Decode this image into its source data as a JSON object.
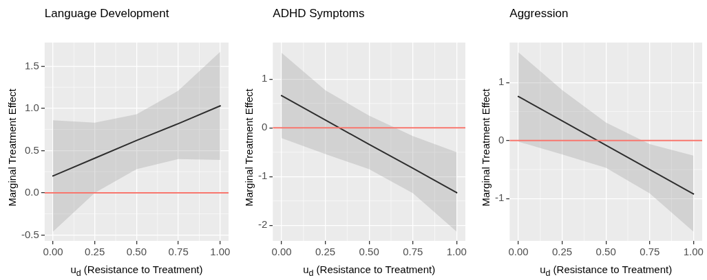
{
  "chart_data": [
    {
      "type": "line",
      "title": "Language Development",
      "xlabel": "u$_{d}$ (Resistance to Treatment)",
      "ylabel": "Marginal Treatment Effect",
      "x": [
        0,
        0.25,
        0.5,
        0.75,
        1
      ],
      "xlim": [
        -0.05,
        1.05
      ],
      "xticks": [
        {
          "value": 0,
          "label": "0.00"
        },
        {
          "value": 0.25,
          "label": "0.25"
        },
        {
          "value": 0.5,
          "label": "0.50"
        },
        {
          "value": 0.75,
          "label": "0.75"
        },
        {
          "value": 1,
          "label": "1.00"
        }
      ],
      "ylim": [
        -0.57,
        1.78
      ],
      "yticks": [
        {
          "value": -0.5,
          "label": "-0.5"
        },
        {
          "value": 0,
          "label": "0.0"
        },
        {
          "value": 0.5,
          "label": "0.5"
        },
        {
          "value": 1,
          "label": "1.0"
        },
        {
          "value": 1.5,
          "label": "1.5"
        }
      ],
      "grid": true,
      "legend": false,
      "series": [
        {
          "color": "#000000",
          "values": [
            0.2,
            0.41,
            0.62,
            0.82,
            1.03
          ],
          "lower": [
            -0.46,
            0.0,
            0.28,
            0.4,
            0.39
          ],
          "upper": [
            0.86,
            0.83,
            0.93,
            1.21,
            1.67
          ]
        }
      ],
      "ref_lines": [
        {
          "axis": "y",
          "value": 0,
          "color": "#f8766d"
        }
      ]
    },
    {
      "type": "line",
      "title": "ADHD Symptoms",
      "xlabel": "u$_{d}$ (Resistance to Treatment)",
      "ylabel": "Marginal Treatment Effect",
      "x": [
        0,
        0.25,
        0.5,
        0.75,
        1
      ],
      "xlim": [
        -0.05,
        1.05
      ],
      "xticks": [
        {
          "value": 0,
          "label": "0.00"
        },
        {
          "value": 0.25,
          "label": "0.25"
        },
        {
          "value": 0.5,
          "label": "0.50"
        },
        {
          "value": 0.75,
          "label": "0.75"
        },
        {
          "value": 1,
          "label": "1.00"
        }
      ],
      "ylim": [
        -2.32,
        1.75
      ],
      "yticks": [
        {
          "value": -2,
          "label": "-2"
        },
        {
          "value": -1,
          "label": "-1"
        },
        {
          "value": 0,
          "label": "0"
        },
        {
          "value": 1,
          "label": "1"
        }
      ],
      "grid": true,
      "legend": false,
      "series": [
        {
          "color": "#000000",
          "values": [
            0.66,
            0.16,
            -0.34,
            -0.83,
            -1.33
          ],
          "lower": [
            -0.21,
            -0.54,
            -0.85,
            -1.34,
            -2.13
          ],
          "upper": [
            1.54,
            0.77,
            0.25,
            -0.17,
            -0.5
          ]
        }
      ],
      "ref_lines": [
        {
          "axis": "y",
          "value": 0,
          "color": "#f8766d"
        }
      ]
    },
    {
      "type": "line",
      "title": "Aggression",
      "xlabel": "u$_{d}$ (Resistance to Treatment)",
      "ylabel": "Marginal Treatment Effect",
      "x": [
        0,
        0.25,
        0.5,
        0.75,
        1
      ],
      "xlim": [
        -0.05,
        1.05
      ],
      "xticks": [
        {
          "value": 0,
          "label": "0.00"
        },
        {
          "value": 0.25,
          "label": "0.25"
        },
        {
          "value": 0.5,
          "label": "0.50"
        },
        {
          "value": 0.75,
          "label": "0.75"
        },
        {
          "value": 1,
          "label": "1.00"
        }
      ],
      "ylim": [
        -1.73,
        1.69
      ],
      "yticks": [
        {
          "value": -1,
          "label": "-1"
        },
        {
          "value": 0,
          "label": "0"
        },
        {
          "value": 1,
          "label": "1"
        }
      ],
      "grid": true,
      "legend": false,
      "series": [
        {
          "color": "#000000",
          "values": [
            0.76,
            0.34,
            -0.08,
            -0.5,
            -0.92
          ],
          "lower": [
            -0.02,
            -0.24,
            -0.47,
            -0.91,
            -1.57
          ],
          "upper": [
            1.52,
            0.87,
            0.31,
            -0.06,
            -0.26
          ]
        }
      ],
      "ref_lines": [
        {
          "axis": "y",
          "value": 0,
          "color": "#f8766d"
        }
      ]
    }
  ]
}
